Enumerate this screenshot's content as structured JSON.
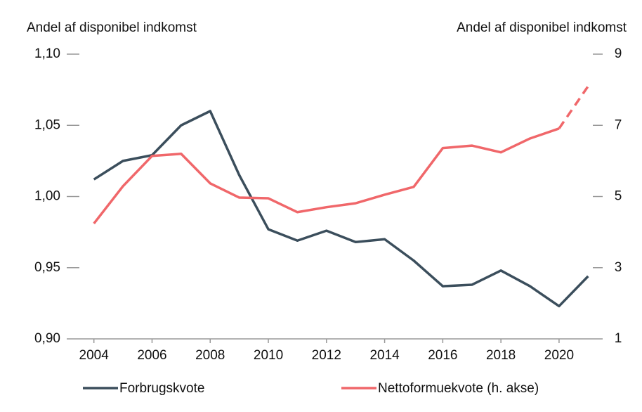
{
  "chart_data": {
    "type": "line",
    "y_label": "Andel af disponibel indkomst",
    "y2_label": "Andel af disponibel indkomst",
    "x": [
      2004,
      2005,
      2006,
      2007,
      2008,
      2009,
      2010,
      2011,
      2012,
      2013,
      2014,
      2015,
      2016,
      2017,
      2018,
      2019,
      2020,
      2021
    ],
    "series": [
      {
        "name": "Forbrugskvote",
        "color": "#3b4e5c",
        "axis": "y",
        "values": [
          1.012,
          1.025,
          1.029,
          1.05,
          1.06,
          1.015,
          0.977,
          0.969,
          0.976,
          0.968,
          0.97,
          0.955,
          0.937,
          0.938,
          0.948,
          0.937,
          0.923,
          0.944
        ]
      },
      {
        "name": "Nettoformuekvote (h. akse)",
        "color": "#f0676a",
        "axis": "y2",
        "dashed_last": 1,
        "values": [
          4.24,
          5.29,
          6.14,
          6.2,
          5.37,
          4.97,
          4.95,
          4.56,
          4.7,
          4.81,
          5.05,
          5.27,
          6.36,
          6.43,
          6.24,
          6.63,
          6.91,
          8.1
        ]
      }
    ],
    "xlim": [
      2003.5,
      2021.5
    ],
    "xticks": [
      2004,
      2006,
      2008,
      2010,
      2012,
      2014,
      2016,
      2018,
      2020
    ],
    "ylim": [
      0.9,
      1.1
    ],
    "yticks": [
      {
        "value": 0.9,
        "label": "0,90"
      },
      {
        "value": 0.95,
        "label": "0,95"
      },
      {
        "value": 1.0,
        "label": "1,00"
      },
      {
        "value": 1.05,
        "label": "1,05"
      },
      {
        "value": 1.1,
        "label": "1,10"
      }
    ],
    "y2lim": [
      1,
      9
    ],
    "y2ticks": [
      1,
      3,
      5,
      7,
      9
    ],
    "grid": false,
    "legend": "bottom"
  }
}
